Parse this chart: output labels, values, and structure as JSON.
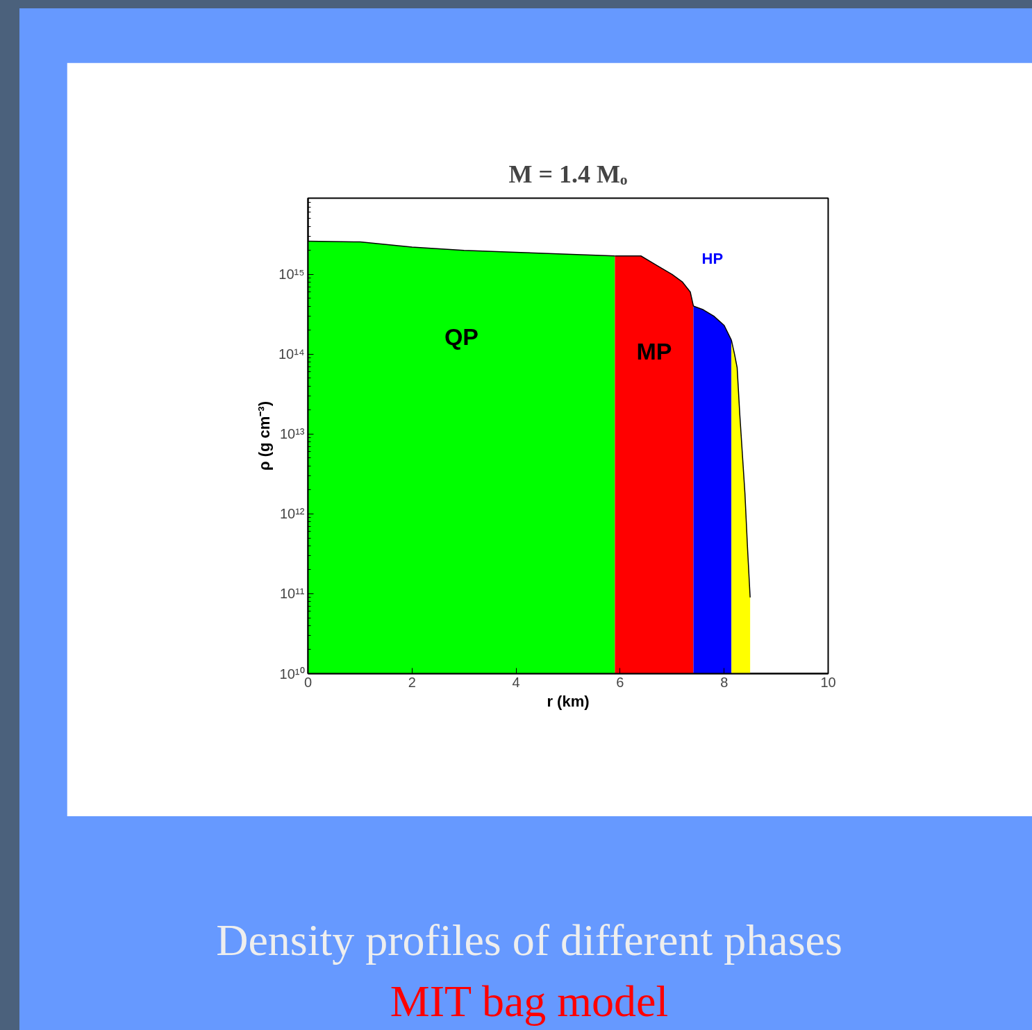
{
  "chart_data": {
    "type": "area",
    "title": "M = 1.4 Mₒ",
    "xlabel": "r (km)",
    "ylabel": "ρ (g cm⁻³)",
    "log": "y",
    "grid": false,
    "xlim": [
      0,
      10
    ],
    "xticks": [
      0,
      2,
      4,
      6,
      8,
      10
    ],
    "ylim": [
      10000000000.0,
      9000000000000000.0
    ],
    "yticks": [
      {
        "value": 10000000000.0,
        "label": "10¹⁰"
      },
      {
        "value": 100000000000.0,
        "label": "10¹¹"
      },
      {
        "value": 1000000000000.0,
        "label": "10¹²"
      },
      {
        "value": 10000000000000.0,
        "label": "10¹³"
      },
      {
        "value": 100000000000000.0,
        "label": "10¹⁴"
      },
      {
        "value": 1000000000000000.0,
        "label": "10¹⁵"
      }
    ],
    "series": [
      {
        "name": "QP",
        "color": "#00ff00",
        "x": [
          0,
          1,
          2,
          3,
          3.9,
          5.9
        ],
        "values": [
          2600000000000000.0,
          2550000000000000.0,
          2200000000000000.0,
          2000000000000000.0,
          1900000000000000.0,
          1700000000000000.0
        ]
      },
      {
        "name": "MP",
        "color": "#ff0000",
        "x": [
          5.9,
          6.4,
          6.7,
          7.0,
          7.2,
          7.35,
          7.41
        ],
        "values": [
          1700000000000000.0,
          1700000000000000.0,
          1300000000000000.0,
          1000000000000000.0,
          800000000000000.0,
          600000000000000.0,
          400000000000000.0
        ]
      },
      {
        "name": "HP",
        "color": "#0000ff",
        "x": [
          7.41,
          7.6,
          7.8,
          8.0,
          8.14
        ],
        "values": [
          400000000000000.0,
          360000000000000.0,
          300000000000000.0,
          230000000000000.0,
          150000000000000.0
        ]
      },
      {
        "color": "#ffff00",
        "x": [
          8.14,
          8.2,
          8.25,
          8.3,
          8.4,
          8.45,
          8.5
        ],
        "values": [
          150000000000000.0,
          100000000000000.0,
          68000000000000.0,
          18000000000000.0,
          1800000000000.0,
          370000000000.0,
          90000000000.0
        ]
      }
    ],
    "annotations": [
      "Density profiles of different phases",
      "MIT bag model"
    ]
  }
}
